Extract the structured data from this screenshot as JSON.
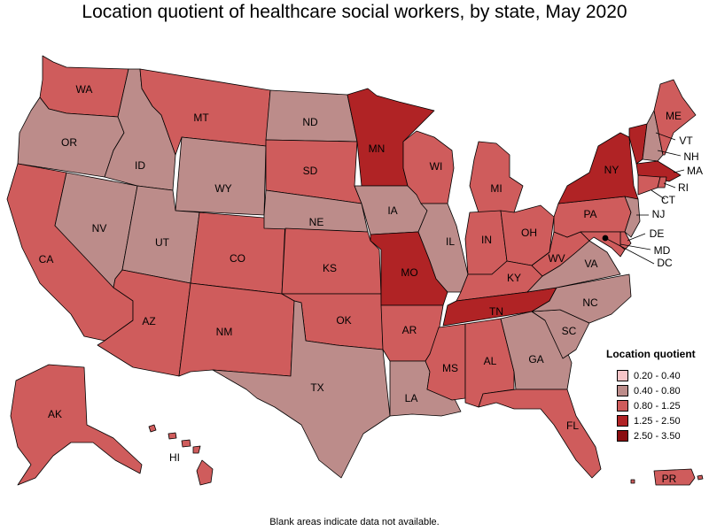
{
  "title": "Location quotient of healthcare social workers, by state, May 2020",
  "footnote": "Blank areas indicate data not available.",
  "colors": {
    "c1": "#f7c5c8",
    "c2": "#bc8c8a",
    "c3": "#cf5c5c",
    "c4": "#b02325",
    "c5": "#8a0d10",
    "border": "#000000"
  },
  "legend": {
    "title": "Location quotient",
    "items": [
      {
        "label": "0.20 - 0.40",
        "color": "#f7c5c8"
      },
      {
        "label": "0.40 - 0.80",
        "color": "#bc8c8a"
      },
      {
        "label": "0.80 - 1.25",
        "color": "#cf5c5c"
      },
      {
        "label": "1.25 - 2.50",
        "color": "#b02325"
      },
      {
        "label": "2.50 - 3.50",
        "color": "#8a0d10"
      }
    ]
  },
  "states": {
    "WA": {
      "label": "WA",
      "cls": "0.80 - 1.25"
    },
    "OR": {
      "label": "OR",
      "cls": "0.40 - 0.80"
    },
    "CA": {
      "label": "CA",
      "cls": "0.80 - 1.25"
    },
    "NV": {
      "label": "NV",
      "cls": "0.40 - 0.80"
    },
    "ID": {
      "label": "ID",
      "cls": "0.40 - 0.80"
    },
    "MT": {
      "label": "MT",
      "cls": "0.80 - 1.25"
    },
    "WY": {
      "label": "WY",
      "cls": "0.40 - 0.80"
    },
    "UT": {
      "label": "UT",
      "cls": "0.40 - 0.80"
    },
    "AZ": {
      "label": "AZ",
      "cls": "0.80 - 1.25"
    },
    "CO": {
      "label": "CO",
      "cls": "0.80 - 1.25"
    },
    "NM": {
      "label": "NM",
      "cls": "0.80 - 1.25"
    },
    "ND": {
      "label": "ND",
      "cls": "0.40 - 0.80"
    },
    "SD": {
      "label": "SD",
      "cls": "0.80 - 1.25"
    },
    "NE": {
      "label": "NE",
      "cls": "0.40 - 0.80"
    },
    "KS": {
      "label": "KS",
      "cls": "0.80 - 1.25"
    },
    "OK": {
      "label": "OK",
      "cls": "0.80 - 1.25"
    },
    "TX": {
      "label": "TX",
      "cls": "0.40 - 0.80"
    },
    "MN": {
      "label": "MN",
      "cls": "1.25 - 2.50"
    },
    "IA": {
      "label": "IA",
      "cls": "0.40 - 0.80"
    },
    "MO": {
      "label": "MO",
      "cls": "1.25 - 2.50"
    },
    "AR": {
      "label": "AR",
      "cls": "0.80 - 1.25"
    },
    "LA": {
      "label": "LA",
      "cls": "0.40 - 0.80"
    },
    "WI": {
      "label": "WI",
      "cls": "0.80 - 1.25"
    },
    "IL": {
      "label": "IL",
      "cls": "0.40 - 0.80"
    },
    "MI": {
      "label": "MI",
      "cls": "0.80 - 1.25"
    },
    "IN": {
      "label": "IN",
      "cls": "0.80 - 1.25"
    },
    "OH": {
      "label": "OH",
      "cls": "0.80 - 1.25"
    },
    "KY": {
      "label": "KY",
      "cls": "0.80 - 1.25"
    },
    "TN": {
      "label": "TN",
      "cls": "1.25 - 2.50"
    },
    "MS": {
      "label": "MS",
      "cls": "0.80 - 1.25"
    },
    "AL": {
      "label": "AL",
      "cls": "0.80 - 1.25"
    },
    "GA": {
      "label": "GA",
      "cls": "0.40 - 0.80"
    },
    "FL": {
      "label": "FL",
      "cls": "0.80 - 1.25"
    },
    "SC": {
      "label": "SC",
      "cls": "0.40 - 0.80"
    },
    "NC": {
      "label": "NC",
      "cls": "0.40 - 0.80"
    },
    "VA": {
      "label": "VA",
      "cls": "0.40 - 0.80"
    },
    "WV": {
      "label": "WV",
      "cls": "0.80 - 1.25"
    },
    "PA": {
      "label": "PA",
      "cls": "0.80 - 1.25"
    },
    "NY": {
      "label": "NY",
      "cls": "1.25 - 2.50"
    },
    "ME": {
      "label": "ME",
      "cls": "0.80 - 1.25"
    },
    "VT": {
      "label": "VT",
      "cls": "1.25 - 2.50"
    },
    "NH": {
      "label": "NH",
      "cls": "0.40 - 0.80"
    },
    "MA": {
      "label": "MA",
      "cls": "1.25 - 2.50"
    },
    "RI": {
      "label": "RI",
      "cls": "0.80 - 1.25"
    },
    "CT": {
      "label": "CT",
      "cls": "0.80 - 1.25"
    },
    "NJ": {
      "label": "NJ",
      "cls": "0.40 - 0.80"
    },
    "DE": {
      "label": "DE",
      "cls": "0.80 - 1.25"
    },
    "MD": {
      "label": "MD",
      "cls": "0.80 - 1.25"
    },
    "DC": {
      "label": "DC",
      "cls": "1.25 - 2.50"
    },
    "AK": {
      "label": "AK",
      "cls": "0.80 - 1.25"
    },
    "HI": {
      "label": "HI",
      "cls": "0.80 - 1.25"
    },
    "PR": {
      "label": "PR",
      "cls": "0.80 - 1.25"
    }
  }
}
